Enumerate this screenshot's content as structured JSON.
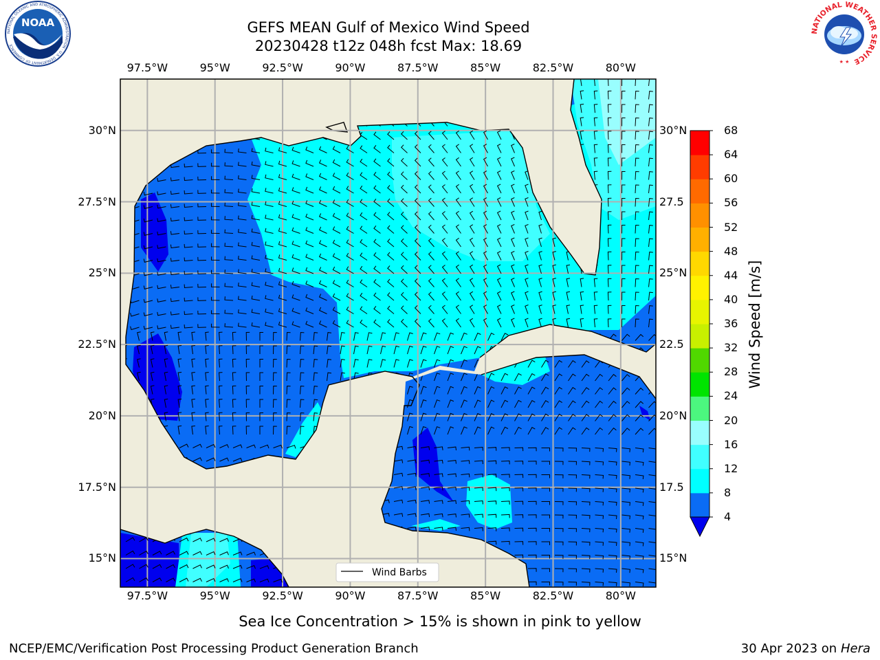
{
  "header": {
    "title_line1": "GEFS MEAN Gulf of Mexico Wind Speed",
    "title_line2": "20230428 t12z 048h fcst   Max: 18.69"
  },
  "logos": {
    "left": {
      "name": "noaa-logo",
      "text": "NOAA",
      "ring_text": "NATIONAL OCEANIC AND ATMOSPHERIC ADMINISTRATION · U.S. DEPARTMENT OF COMMERCE"
    },
    "right": {
      "name": "nws-logo",
      "ring_text": "NATIONAL WEATHER SERVICE"
    }
  },
  "legend": {
    "label": "Wind Barbs"
  },
  "footer": {
    "sea_ice_note": "Sea Ice Concentration > 15% is shown in pink to yellow",
    "credit": "NCEP/EMC/Verification Post Processing Product Generation Branch",
    "date": "30 Apr 2023 on ",
    "machine": "Hera"
  },
  "colors": {
    "land": "#efeddc",
    "grid": "#b0b0b0",
    "barb": "#000000"
  },
  "chart_data": {
    "type": "heatmap",
    "map": "Gulf of Mexico",
    "variable": "Wind Speed",
    "units": "m/s",
    "max_value": 18.69,
    "lon_range": [
      -98.5,
      -78.7
    ],
    "lat_range": [
      14.0,
      31.8
    ],
    "x_ticks": [
      "97.5°W",
      "95°W",
      "92.5°W",
      "90°W",
      "87.5°W",
      "85°W",
      "82.5°W",
      "80°W"
    ],
    "x_tick_values": [
      -97.5,
      -95,
      -92.5,
      -90,
      -87.5,
      -85,
      -82.5,
      -80
    ],
    "y_ticks_left": [
      "30°N",
      "27.5°N",
      "25°N",
      "22.5°N",
      "20°N",
      "17.5°N",
      "15°N"
    ],
    "y_ticks_right": [
      "30°N",
      "27.5",
      "25°N",
      "22.5",
      "20°N",
      "17.5",
      "15°N"
    ],
    "y_tick_values": [
      30,
      27.5,
      25,
      22.5,
      20,
      17.5,
      15
    ],
    "grid": true,
    "legend_position": "bottom",
    "colorbar": {
      "label": "Wind Speed [m/s]",
      "ticks": [
        "4",
        "8",
        "12",
        "16",
        "20",
        "24",
        "28",
        "32",
        "36",
        "40",
        "44",
        "48",
        "52",
        "56",
        "60",
        "64",
        "68"
      ],
      "levels": [
        4,
        6,
        8,
        10,
        12,
        14,
        16,
        18,
        20,
        22,
        24,
        26,
        28,
        30,
        32,
        34,
        36,
        38,
        40,
        42,
        44,
        46,
        48,
        50,
        52,
        54,
        56,
        58,
        60,
        62,
        64,
        66,
        68
      ],
      "colors": [
        "#0a6cf5",
        "#0a6cf5",
        "#00ffff",
        "#00ffff",
        "#40ffff",
        "#40ffff",
        "#99fefe",
        "#99fefe",
        "#4cf77f",
        "#4cf77f",
        "#00e400",
        "#00e400",
        "#50d800",
        "#50d800",
        "#c8f000",
        "#c8f000",
        "#e8f400",
        "#e8f400",
        "#fff200",
        "#fff200",
        "#ffd800",
        "#ffd800",
        "#ffb000",
        "#ffb000",
        "#ff9000",
        "#ff9000",
        "#ff6a00",
        "#ff6a00",
        "#ff3c00",
        "#ff3c00",
        "#ff0000",
        "#ff0000"
      ],
      "under_color": "#0000ee"
    },
    "speed_classes": [
      {
        "range": "< 4",
        "color": "#0000ee"
      },
      {
        "range": "4-8",
        "color": "#0a6cf5"
      },
      {
        "range": "8-12",
        "color": "#00ffff"
      },
      {
        "range": "12-16",
        "color": "#40ffff"
      },
      {
        "range": "16-20",
        "color": "#99fefe"
      }
    ]
  }
}
